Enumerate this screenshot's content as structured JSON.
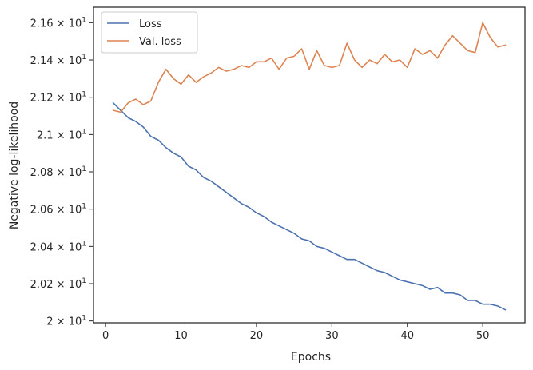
{
  "chart_data": {
    "type": "line",
    "xlabel": "Epochs",
    "ylabel": "Negative log-likelihood",
    "xlim": [
      -1.6,
      55.6
    ],
    "ylim": [
      19.99,
      21.683
    ],
    "x_ticks": [
      0,
      10,
      20,
      30,
      40,
      50
    ],
    "x_tick_labels": [
      "0",
      "10",
      "20",
      "30",
      "40",
      "50"
    ],
    "y_ticks": [
      20.0,
      20.2,
      20.4,
      20.6,
      20.8,
      21.0,
      21.2,
      21.4,
      21.6
    ],
    "y_tick_labels": [
      {
        "mantissa": "2",
        "exponent": "1"
      },
      {
        "mantissa": "2.02",
        "exponent": "1"
      },
      {
        "mantissa": "2.04",
        "exponent": "1"
      },
      {
        "mantissa": "2.06",
        "exponent": "1"
      },
      {
        "mantissa": "2.08",
        "exponent": "1"
      },
      {
        "mantissa": "2.1",
        "exponent": "1"
      },
      {
        "mantissa": "2.12",
        "exponent": "1"
      },
      {
        "mantissa": "2.14",
        "exponent": "1"
      },
      {
        "mantissa": "2.16",
        "exponent": "1"
      }
    ],
    "y_tick_times": "×",
    "y_tick_base": "10",
    "legend_position": "top-left",
    "grid": false,
    "x": [
      1,
      2,
      3,
      4,
      5,
      6,
      7,
      8,
      9,
      10,
      11,
      12,
      13,
      14,
      15,
      16,
      17,
      18,
      19,
      20,
      21,
      22,
      23,
      24,
      25,
      26,
      27,
      28,
      29,
      30,
      31,
      32,
      33,
      34,
      35,
      36,
      37,
      38,
      39,
      40,
      41,
      42,
      43,
      44,
      45,
      46,
      47,
      48,
      49,
      50,
      51,
      52,
      53
    ],
    "series": [
      {
        "name": "Loss",
        "color": "#4c72b0",
        "values": [
          21.17,
          21.13,
          21.09,
          21.07,
          21.04,
          20.99,
          20.97,
          20.93,
          20.9,
          20.88,
          20.83,
          20.81,
          20.77,
          20.75,
          20.72,
          20.69,
          20.66,
          20.63,
          20.61,
          20.58,
          20.56,
          20.53,
          20.51,
          20.49,
          20.47,
          20.44,
          20.43,
          20.4,
          20.39,
          20.37,
          20.35,
          20.33,
          20.33,
          20.31,
          20.29,
          20.27,
          20.26,
          20.24,
          20.22,
          20.21,
          20.2,
          20.19,
          20.17,
          20.18,
          20.15,
          20.15,
          20.14,
          20.11,
          20.11,
          20.09,
          20.09,
          20.08,
          20.06
        ]
      },
      {
        "name": "Val. loss",
        "color": "#dd8452",
        "values": [
          21.13,
          21.12,
          21.17,
          21.19,
          21.16,
          21.18,
          21.28,
          21.35,
          21.3,
          21.27,
          21.32,
          21.28,
          21.31,
          21.33,
          21.36,
          21.34,
          21.35,
          21.37,
          21.36,
          21.39,
          21.39,
          21.41,
          21.35,
          21.41,
          21.42,
          21.46,
          21.35,
          21.45,
          21.37,
          21.36,
          21.37,
          21.49,
          21.4,
          21.36,
          21.4,
          21.38,
          21.43,
          21.39,
          21.4,
          21.36,
          21.46,
          21.43,
          21.45,
          21.41,
          21.48,
          21.53,
          21.49,
          21.45,
          21.44,
          21.6,
          21.52,
          21.47,
          21.48
        ]
      }
    ]
  }
}
